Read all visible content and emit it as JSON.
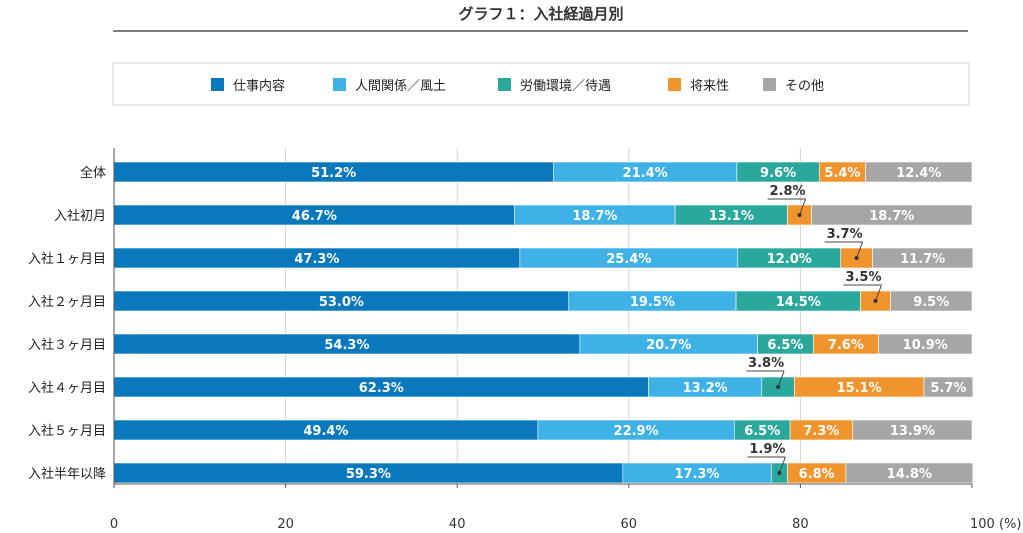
{
  "chart_data": {
    "type": "bar",
    "orientation": "horizontal",
    "stacked": true,
    "title": "グラフ１：入社経過月別",
    "categories": [
      "全体",
      "入社初月",
      "入社１ヶ月目",
      "入社２ヶ月目",
      "入社３ヶ月目",
      "入社４ヶ月目",
      "入社５ヶ月目",
      "入社半年以降"
    ],
    "series": [
      {
        "name": "仕事内容",
        "color": "#0a78bd",
        "values": [
          51.2,
          46.7,
          47.3,
          53.0,
          54.3,
          62.3,
          49.4,
          59.3
        ],
        "labels": [
          "51.2%",
          "46.7%",
          "47.3%",
          "53.0%",
          "54.3%",
          "62.3%",
          "49.4%",
          "59.3%"
        ]
      },
      {
        "name": "人間関係／風土",
        "color": "#3eb1e6",
        "values": [
          21.4,
          18.7,
          25.4,
          19.5,
          20.7,
          13.2,
          22.9,
          17.3
        ],
        "labels": [
          "21.4%",
          "18.7%",
          "25.4%",
          "19.5%",
          "20.7%",
          "13.2%",
          "22.9%",
          "17.3%"
        ]
      },
      {
        "name": "労働環境／待遇",
        "color": "#2ba89c",
        "values": [
          9.6,
          13.1,
          12.0,
          14.5,
          6.5,
          3.8,
          6.5,
          1.9
        ],
        "labels": [
          "9.6%",
          "13.1%",
          "12.0%",
          "14.5%",
          "6.5%",
          "3.8%",
          "6.5%",
          "1.9%"
        ]
      },
      {
        "name": "将来性",
        "color": "#f0952e",
        "values": [
          5.4,
          2.8,
          3.7,
          3.5,
          7.6,
          15.1,
          7.3,
          6.8
        ],
        "labels": [
          "5.4%",
          "2.8%",
          "3.7%",
          "3.5%",
          "7.6%",
          "15.1%",
          "7.3%",
          "6.8%"
        ]
      },
      {
        "name": "その他",
        "color": "#a6a6a6",
        "values": [
          12.4,
          18.7,
          11.7,
          9.5,
          10.9,
          5.7,
          13.9,
          14.8
        ],
        "labels": [
          "12.4%",
          "18.7%",
          "11.7%",
          "9.5%",
          "10.9%",
          "5.7%",
          "13.9%",
          "14.8%"
        ]
      }
    ],
    "x_ticks": [
      "0",
      "20",
      "40",
      "60",
      "80",
      "100 (%)"
    ],
    "xlim": [
      0,
      100
    ],
    "grid": true,
    "legend_position": "top"
  }
}
